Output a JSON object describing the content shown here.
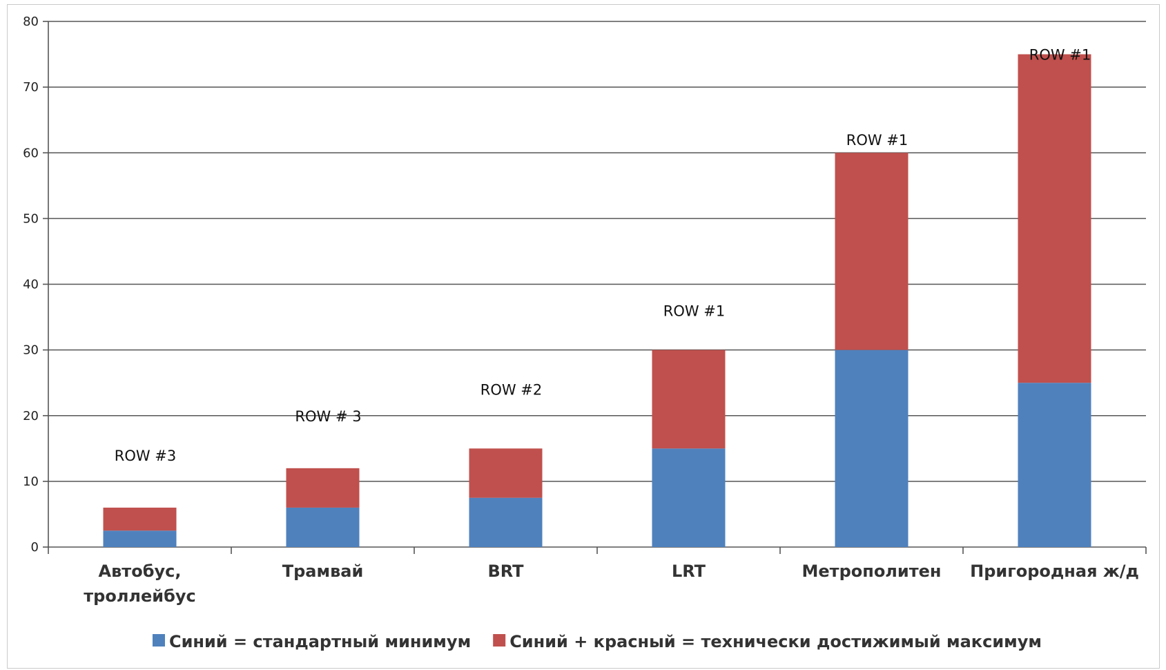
{
  "chart_data": {
    "type": "bar",
    "stacked": true,
    "categories": [
      [
        "Автобус,",
        "троллейбус"
      ],
      [
        "Трамвай"
      ],
      [
        "BRT"
      ],
      [
        "LRT"
      ],
      [
        "Метрополитен"
      ],
      [
        "Пригородная ж/д"
      ]
    ],
    "series": [
      {
        "name": "Синий = стандартный минимум",
        "values": [
          2.5,
          6,
          7.5,
          15,
          30,
          25
        ],
        "color": "#4f81bd"
      },
      {
        "name": "Синий + красный = технически достижимый максимум",
        "values": [
          3.5,
          6,
          7.5,
          15,
          30,
          50
        ],
        "color": "#c0504d"
      }
    ],
    "annotations": [
      "ROW #3",
      "ROW # 3",
      "ROW #2",
      "ROW #1",
      "ROW #1",
      "ROW #1"
    ],
    "annotation_values": [
      14,
      20,
      24,
      36,
      62,
      75
    ],
    "yticks": [
      0,
      10,
      20,
      30,
      40,
      50,
      60,
      70,
      80
    ],
    "ylim": [
      0,
      80
    ],
    "grid": true,
    "legend_position": "bottom",
    "title": "",
    "xlabel": "",
    "ylabel": ""
  }
}
